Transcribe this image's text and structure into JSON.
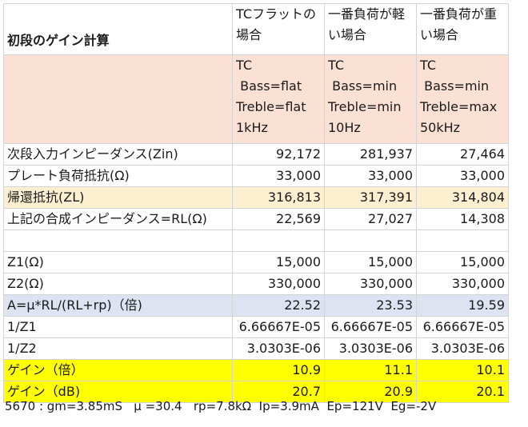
{
  "title": "初段のゲイン計算",
  "columns": [
    {
      "heading": "TCフラットの場合",
      "params": [
        "TC",
        " Bass=flat",
        "Treble=flat",
        "1kHz"
      ]
    },
    {
      "heading": "一番負荷が軽い場合",
      "params": [
        "TC",
        " Bass=min",
        "Treble=min",
        "10Hz"
      ]
    },
    {
      "heading": "一番負荷が重い場合",
      "params": [
        "TC",
        " Bass=min",
        "Treble=max",
        "50kHz"
      ]
    }
  ],
  "rows": [
    {
      "label": "次段入力インピーダンス(Zin)",
      "values": [
        "92,172",
        "281,937",
        "27,464"
      ]
    },
    {
      "label": "プレート負荷抵抗(Ω)",
      "values": [
        "33,000",
        "33,000",
        "33,000"
      ]
    },
    {
      "label": "帰還抵抗(ZL)",
      "values": [
        "316,813",
        "317,391",
        "314,804"
      ]
    },
    {
      "label": "上記の合成インピーダンス=RL(Ω)",
      "values": [
        "22,569",
        "27,027",
        "14,308"
      ]
    },
    {
      "label": "",
      "values": [
        "",
        "",
        ""
      ]
    },
    {
      "label": "Z1(Ω)",
      "values": [
        "15,000",
        "15,000",
        "15,000"
      ]
    },
    {
      "label": "Z2(Ω)",
      "values": [
        "330,000",
        "330,000",
        "330,000"
      ]
    },
    {
      "label": "A=μ*RL/(RL+rp)（倍)",
      "values": [
        "22.52",
        "23.53",
        "19.59"
      ]
    },
    {
      "label": "1/Z1",
      "values": [
        "6.66667E-05",
        "6.66667E-05",
        "6.66667E-05"
      ]
    },
    {
      "label": "1/Z2",
      "values": [
        "3.0303E-06",
        "3.0303E-06",
        "3.0303E-06"
      ]
    },
    {
      "label": "ゲイン（倍）",
      "values": [
        "10.9",
        "11.1",
        "10.1"
      ]
    },
    {
      "label": "ゲイン（dB)",
      "values": [
        "20.7",
        "20.9",
        "20.1"
      ]
    }
  ],
  "footer": "5670 : gm=3.85mS   μ =30.4   rp=7.8kΩ  Ip=3.9mA  Ep=121V  Eg=-2V",
  "colors": {
    "header_fill": "#fbe1d4",
    "feedback_row_fill": "#fdf0d1",
    "gain_formula_row_fill": "#dde3f1",
    "gain_rows_fill": "#ffff00",
    "gridline": "#d4d4d4"
  }
}
